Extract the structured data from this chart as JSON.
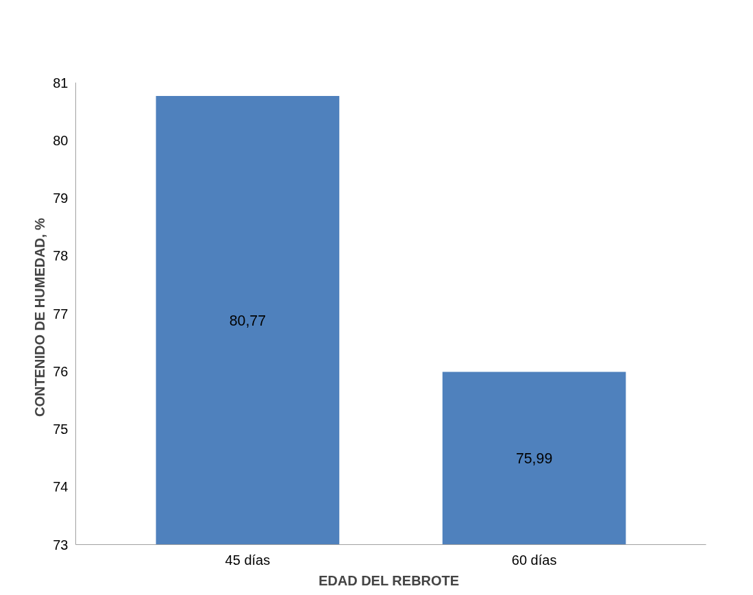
{
  "chart_data": {
    "type": "bar",
    "categories": [
      "45 días",
      "60 días"
    ],
    "values": [
      80.77,
      75.99
    ],
    "color": "#4f81bd",
    "value_labels": [
      "80,77",
      "75,99"
    ],
    "xlabel": "EDAD DEL  REBROTE",
    "ylabel": "CONTENIDO  DE HUMEDAD,  %",
    "ylim": [
      73,
      81
    ],
    "yticks": [
      73,
      74,
      75,
      76,
      77,
      78,
      79,
      80,
      81
    ],
    "grid": false
  }
}
